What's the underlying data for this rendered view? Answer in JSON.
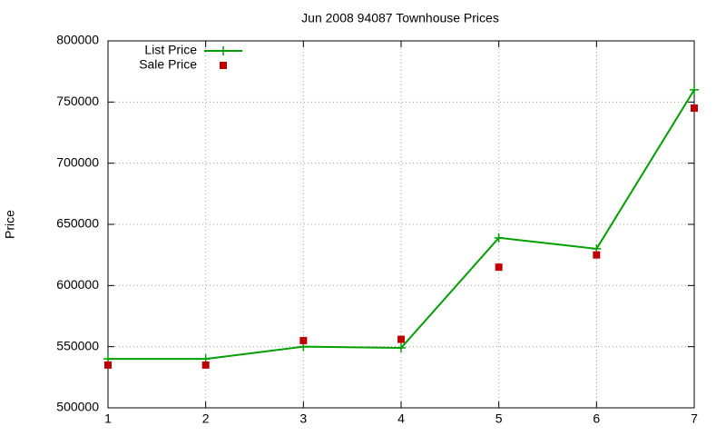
{
  "chart_data": {
    "type": "line",
    "title": "Jun 2008 94087 Townhouse Prices",
    "y_label": "Price",
    "x": [
      1,
      2,
      3,
      4,
      5,
      6,
      7
    ],
    "series": [
      {
        "name": "List Price",
        "color": "#00a000",
        "style": "linespoints",
        "values": [
          540000,
          540000,
          550000,
          549000,
          639000,
          630000,
          760000
        ]
      },
      {
        "name": "Sale Price",
        "color": "#c00000",
        "style": "points",
        "values": [
          535000,
          535000,
          555000,
          556000,
          615000,
          625000,
          745000
        ]
      }
    ],
    "xlim": [
      1,
      7
    ],
    "xticks": [
      1,
      2,
      3,
      4,
      5,
      6,
      7
    ],
    "ylim": [
      500000,
      800000
    ],
    "yticks": [
      500000,
      550000,
      600000,
      650000,
      700000,
      750000,
      800000
    ],
    "grid": true,
    "legend": "top-left"
  }
}
